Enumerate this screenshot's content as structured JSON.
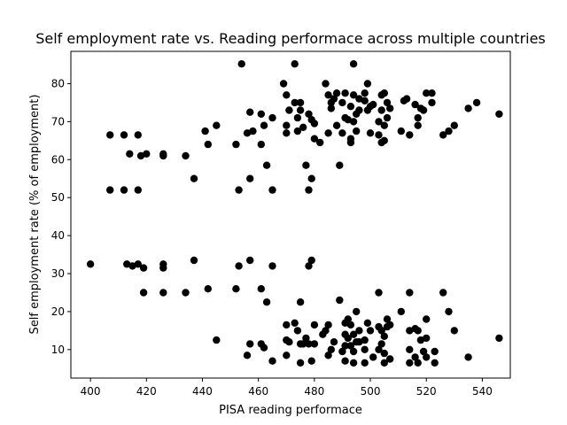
{
  "chart_data": {
    "type": "scatter",
    "title": "Self employment rate vs. Reading performace across multiple countries",
    "xlabel": "PISA reading performace",
    "ylabel": "Self employment rate (% of employment)",
    "xlim": [
      393,
      550
    ],
    "ylim": [
      2.5,
      88.5
    ],
    "xticks": [
      400,
      420,
      440,
      460,
      480,
      500,
      520,
      540
    ],
    "yticks": [
      10,
      20,
      30,
      40,
      50,
      60,
      70,
      80
    ],
    "grid": false,
    "marker_color": "#000000",
    "points": [
      [
        400,
        32.5
      ],
      [
        407,
        66.5
      ],
      [
        407,
        52
      ],
      [
        412,
        66.5
      ],
      [
        412,
        52
      ],
      [
        413,
        32.5
      ],
      [
        414,
        61.5
      ],
      [
        415,
        32
      ],
      [
        417,
        66.5
      ],
      [
        417,
        52
      ],
      [
        417,
        32.5
      ],
      [
        418,
        61
      ],
      [
        419,
        25
      ],
      [
        419,
        31.5
      ],
      [
        420,
        61.5
      ],
      [
        426,
        61.5
      ],
      [
        426,
        61
      ],
      [
        426,
        32.5
      ],
      [
        426,
        31.5
      ],
      [
        426,
        25
      ],
      [
        434,
        61
      ],
      [
        434,
        25
      ],
      [
        437,
        55
      ],
      [
        437,
        33.5
      ],
      [
        441,
        67.5
      ],
      [
        442,
        64
      ],
      [
        442,
        26
      ],
      [
        445,
        69
      ],
      [
        445,
        12.5
      ],
      [
        452,
        64
      ],
      [
        452,
        26
      ],
      [
        453,
        52
      ],
      [
        453,
        32
      ],
      [
        454,
        85.2
      ],
      [
        456,
        67
      ],
      [
        456,
        8.5
      ],
      [
        457,
        55
      ],
      [
        457,
        72.5
      ],
      [
        457,
        33.5
      ],
      [
        457,
        11.5
      ],
      [
        458,
        67.5
      ],
      [
        461,
        72
      ],
      [
        461,
        64
      ],
      [
        461,
        26
      ],
      [
        461,
        11.5
      ],
      [
        462,
        69
      ],
      [
        462,
        10.5
      ],
      [
        463,
        58.5
      ],
      [
        463,
        22.5
      ],
      [
        465,
        71
      ],
      [
        465,
        52
      ],
      [
        465,
        32
      ],
      [
        465,
        7
      ],
      [
        469,
        80
      ],
      [
        470,
        77
      ],
      [
        470,
        69
      ],
      [
        470,
        67
      ],
      [
        470,
        16.5
      ],
      [
        470,
        12.5
      ],
      [
        470,
        8.5
      ],
      [
        471,
        73
      ],
      [
        471,
        12
      ],
      [
        473,
        85.2
      ],
      [
        473,
        75
      ],
      [
        473,
        17
      ],
      [
        474,
        71
      ],
      [
        474,
        67.5
      ],
      [
        474,
        15
      ],
      [
        475,
        75
      ],
      [
        475,
        73
      ],
      [
        475,
        22.5
      ],
      [
        475,
        11.5
      ],
      [
        475,
        6.5
      ],
      [
        476,
        68.5
      ],
      [
        476,
        11.5
      ],
      [
        477,
        58.5
      ],
      [
        477,
        13
      ],
      [
        478,
        72
      ],
      [
        478,
        52
      ],
      [
        478,
        32
      ],
      [
        478,
        11.5
      ],
      [
        479,
        70.5
      ],
      [
        479,
        55
      ],
      [
        479,
        33.5
      ],
      [
        479,
        7
      ],
      [
        480,
        69.5
      ],
      [
        480,
        65.5
      ],
      [
        480,
        16.5
      ],
      [
        480,
        11.5
      ],
      [
        482,
        64.5
      ],
      [
        483,
        14
      ],
      [
        484,
        80
      ],
      [
        484,
        15
      ],
      [
        485,
        77
      ],
      [
        485,
        67
      ],
      [
        485,
        16.5
      ],
      [
        485,
        8.5
      ],
      [
        486,
        75
      ],
      [
        486,
        73.5
      ],
      [
        486,
        10
      ],
      [
        487,
        76
      ],
      [
        487,
        12
      ],
      [
        488,
        77.5
      ],
      [
        488,
        69
      ],
      [
        489,
        58.5
      ],
      [
        489,
        23
      ],
      [
        490,
        75
      ],
      [
        490,
        67
      ],
      [
        490,
        9.5
      ],
      [
        491,
        77.5
      ],
      [
        491,
        71
      ],
      [
        491,
        17
      ],
      [
        491,
        14
      ],
      [
        491,
        11
      ],
      [
        491,
        7
      ],
      [
        492,
        70.5
      ],
      [
        492,
        18
      ],
      [
        492,
        13
      ],
      [
        493,
        74
      ],
      [
        493,
        65.5
      ],
      [
        493,
        64.5
      ],
      [
        493,
        16.5
      ],
      [
        493,
        11
      ],
      [
        494,
        77
      ],
      [
        494,
        85.2
      ],
      [
        494,
        70
      ],
      [
        494,
        14
      ],
      [
        494,
        9.5
      ],
      [
        494,
        6.5
      ],
      [
        495,
        72
      ],
      [
        495,
        67.5
      ],
      [
        495,
        20
      ],
      [
        495,
        12
      ],
      [
        496,
        76
      ],
      [
        496,
        73
      ],
      [
        496,
        15
      ],
      [
        496,
        12
      ],
      [
        498,
        77.5
      ],
      [
        498,
        75.5
      ],
      [
        498,
        12.5
      ],
      [
        498,
        10
      ],
      [
        498,
        6.5
      ],
      [
        499,
        80
      ],
      [
        499,
        73
      ],
      [
        499,
        17
      ],
      [
        500,
        74
      ],
      [
        500,
        67
      ],
      [
        500,
        15
      ],
      [
        501,
        74.5
      ],
      [
        501,
        8
      ],
      [
        503,
        70
      ],
      [
        503,
        66.5
      ],
      [
        503,
        25
      ],
      [
        503,
        16
      ],
      [
        503,
        10
      ],
      [
        504,
        77
      ],
      [
        504,
        73
      ],
      [
        504,
        64.5
      ],
      [
        504,
        15
      ],
      [
        504,
        11.5
      ],
      [
        505,
        77.5
      ],
      [
        505,
        69
      ],
      [
        505,
        65
      ],
      [
        505,
        13.5
      ],
      [
        505,
        9
      ],
      [
        505,
        6.5
      ],
      [
        506,
        75
      ],
      [
        506,
        71
      ],
      [
        506,
        18
      ],
      [
        506,
        16
      ],
      [
        507,
        73.5
      ],
      [
        507,
        16.5
      ],
      [
        507,
        7.5
      ],
      [
        511,
        67.5
      ],
      [
        511,
        20
      ],
      [
        512,
        75.5
      ],
      [
        513,
        76
      ],
      [
        514,
        66.5
      ],
      [
        514,
        25
      ],
      [
        514,
        15
      ],
      [
        514,
        10
      ],
      [
        514,
        6.5
      ],
      [
        516,
        74.5
      ],
      [
        516,
        15.5
      ],
      [
        516,
        8
      ],
      [
        517,
        71
      ],
      [
        517,
        69
      ],
      [
        517,
        15
      ],
      [
        517,
        6.5
      ],
      [
        518,
        73.5
      ],
      [
        518,
        12.5
      ],
      [
        519,
        73
      ],
      [
        519,
        9.5
      ],
      [
        520,
        77.5
      ],
      [
        520,
        18
      ],
      [
        520,
        13
      ],
      [
        520,
        8
      ],
      [
        522,
        75
      ],
      [
        522,
        77.5
      ],
      [
        523,
        9.5
      ],
      [
        523,
        6.5
      ],
      [
        526,
        66.5
      ],
      [
        526,
        25
      ],
      [
        528,
        67.5
      ],
      [
        528,
        20
      ],
      [
        530,
        69
      ],
      [
        530,
        15
      ],
      [
        535,
        73.5
      ],
      [
        535,
        8
      ],
      [
        538,
        75
      ],
      [
        546,
        72
      ],
      [
        546,
        13
      ]
    ]
  }
}
